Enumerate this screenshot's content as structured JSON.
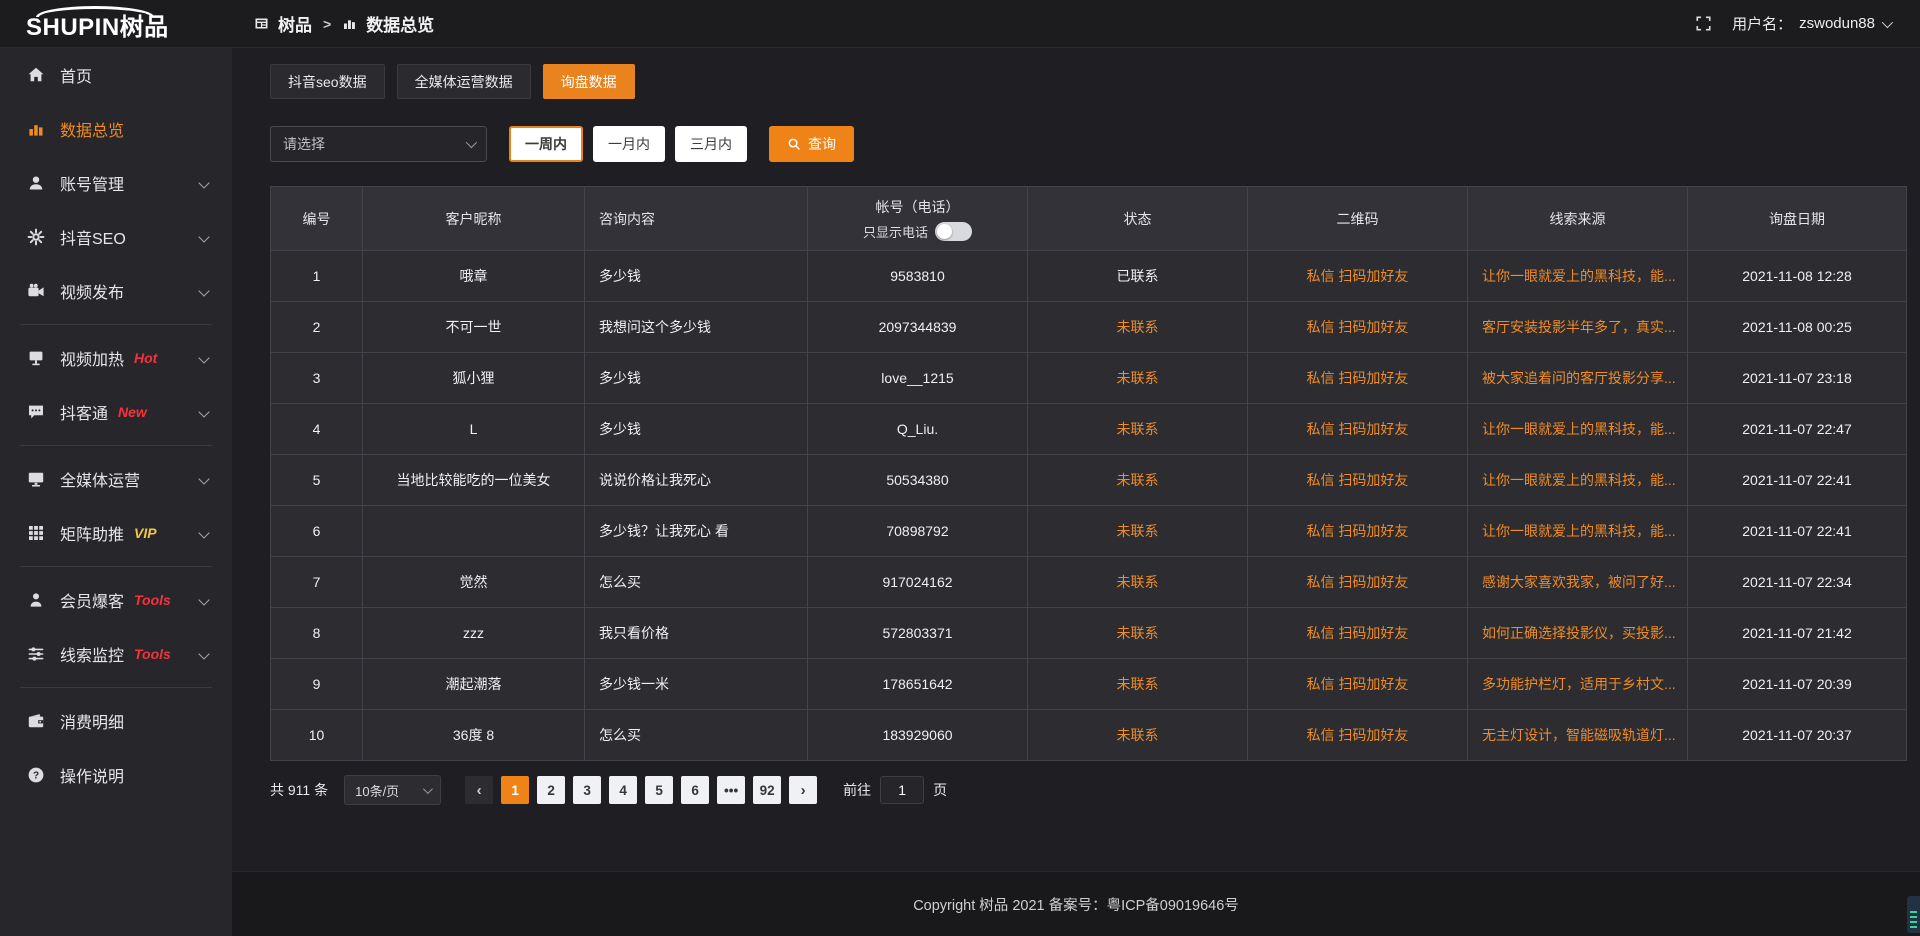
{
  "colors": {
    "accent": "#e8831d",
    "link": "#ef8c28",
    "status_pending": "#ef8c28",
    "status_contacted": "#f0f0f2",
    "badge_red": "#f5313d",
    "badge_vip": "#f6c643"
  },
  "header": {
    "logo_text": "SHUPIN",
    "logo_cn": "树品",
    "breadcrumb": [
      {
        "label": "树品"
      },
      {
        "label": "数据总览"
      }
    ],
    "breadcrumb_separator": ">",
    "username_label": "用户名：",
    "username": "zswodun88"
  },
  "sidebar": {
    "items": [
      {
        "label": "首页",
        "icon": "home-icon",
        "active": false,
        "chevron": false
      },
      {
        "label": "数据总览",
        "icon": "bar-chart-icon",
        "active": true,
        "chevron": false
      },
      {
        "label": "账号管理",
        "icon": "user-icon",
        "chevron": true
      },
      {
        "label": "抖音SEO",
        "icon": "gear-icon",
        "chevron": true
      },
      {
        "label": "视频发布",
        "icon": "video-camera-icon",
        "chevron": true,
        "divider_after": true
      },
      {
        "label": "视频加热",
        "icon": "screen-board-icon",
        "badge": "Hot",
        "badge_color": "#f5313d",
        "chevron": true
      },
      {
        "label": "抖客通",
        "icon": "chat-bubble-icon",
        "badge": "New",
        "badge_color": "#f5313d",
        "chevron": true,
        "divider_after": true
      },
      {
        "label": "全媒体运营",
        "icon": "monitor-icon",
        "chevron": true
      },
      {
        "label": "矩阵助推",
        "icon": "grid-icon",
        "badge": "VIP",
        "badge_color": "#f6c643",
        "chevron": true,
        "divider_after": true
      },
      {
        "label": "会员爆客",
        "icon": "member-icon",
        "badge": "Tools",
        "badge_color": "#f5313d",
        "chevron": true
      },
      {
        "label": "线索监控",
        "icon": "sliders-icon",
        "badge": "Tools",
        "badge_color": "#f5313d",
        "chevron": true,
        "divider_after": true
      },
      {
        "label": "消费明细",
        "icon": "wallet-icon",
        "chevron": false
      },
      {
        "label": "操作说明",
        "icon": "question-circle-icon",
        "chevron": false
      }
    ]
  },
  "tabs": [
    {
      "label": "抖音seo数据",
      "active": false
    },
    {
      "label": "全媒体运营数据",
      "active": false
    },
    {
      "label": "询盘数据",
      "active": true
    }
  ],
  "filters": {
    "select_placeholder": "请选择",
    "range_buttons": [
      {
        "label": "一周内",
        "active": true
      },
      {
        "label": "一月内",
        "active": false
      },
      {
        "label": "三月内",
        "active": false
      }
    ],
    "search_label": "查询"
  },
  "table": {
    "columns": [
      "编号",
      "客户昵称",
      "咨询内容",
      "帐号（电话）",
      "状态",
      "二维码",
      "线索来源",
      "询盘日期"
    ],
    "phone_toggle_label": "只显示电话",
    "phone_toggle_on": false,
    "rows": [
      {
        "no": 1,
        "nickname": "哦章",
        "content": "多少钱",
        "account": "9583810",
        "status": "已联系",
        "qrcode": "私信 扫码加好友",
        "source": "让你一眼就爱上的黑科技，能...",
        "date": "2021-11-08 12:28"
      },
      {
        "no": 2,
        "nickname": "不可一世",
        "content": "我想问这个多少钱",
        "account": "2097344839",
        "status": "未联系",
        "qrcode": "私信 扫码加好友",
        "source": "客厅安装投影半年多了，真实...",
        "date": "2021-11-08 00:25"
      },
      {
        "no": 3,
        "nickname": "狐小狸",
        "content": "多少钱",
        "account": "love__1215",
        "status": "未联系",
        "qrcode": "私信 扫码加好友",
        "source": "被大家追着问的客厅投影分享...",
        "date": "2021-11-07 23:18"
      },
      {
        "no": 4,
        "nickname": "L",
        "content": "多少钱",
        "account": "Q_Liu.",
        "status": "未联系",
        "qrcode": "私信 扫码加好友",
        "source": "让你一眼就爱上的黑科技，能...",
        "date": "2021-11-07 22:47"
      },
      {
        "no": 5,
        "nickname": "当地比较能吃的一位美女",
        "content": "说说价格让我死心",
        "account": "50534380",
        "status": "未联系",
        "qrcode": "私信 扫码加好友",
        "source": "让你一眼就爱上的黑科技，能...",
        "date": "2021-11-07 22:41"
      },
      {
        "no": 6,
        "nickname": "",
        "content": "多少钱？让我死心 看",
        "account": "70898792",
        "status": "未联系",
        "qrcode": "私信 扫码加好友",
        "source": "让你一眼就爱上的黑科技，能...",
        "date": "2021-11-07 22:41"
      },
      {
        "no": 7,
        "nickname": "觉然",
        "content": "怎么买",
        "account": "917024162",
        "status": "未联系",
        "qrcode": "私信 扫码加好友",
        "source": "感谢大家喜欢我家，被问了好...",
        "date": "2021-11-07 22:34"
      },
      {
        "no": 8,
        "nickname": "zzz",
        "content": "我只看价格",
        "account": "572803371",
        "status": "未联系",
        "qrcode": "私信 扫码加好友",
        "source": "如何正确选择投影仪，买投影...",
        "date": "2021-11-07 21:42"
      },
      {
        "no": 9,
        "nickname": "潮起潮落",
        "content": "多少钱一米",
        "account": "178651642",
        "status": "未联系",
        "qrcode": "私信 扫码加好友",
        "source": "多功能护栏灯，适用于乡村文...",
        "date": "2021-11-07 20:39"
      },
      {
        "no": 10,
        "nickname": "36度 8",
        "content": "怎么买",
        "account": "183929060",
        "status": "未联系",
        "qrcode": "私信 扫码加好友",
        "source": "无主灯设计，智能磁吸轨道灯...",
        "date": "2021-11-07 20:37"
      }
    ]
  },
  "pagination": {
    "total_label": "共 911 条",
    "page_size": "10条/页",
    "prev_label": "‹",
    "next_label": "›",
    "pages": [
      "1",
      "2",
      "3",
      "4",
      "5",
      "6",
      "•••",
      "92"
    ],
    "active_page": "1",
    "goto_label": "前往",
    "goto_value": "1",
    "goto_suffix": "页"
  },
  "footer": {
    "copyright": "Copyright 树品 2021 备案号：粤ICP备09019646号"
  }
}
